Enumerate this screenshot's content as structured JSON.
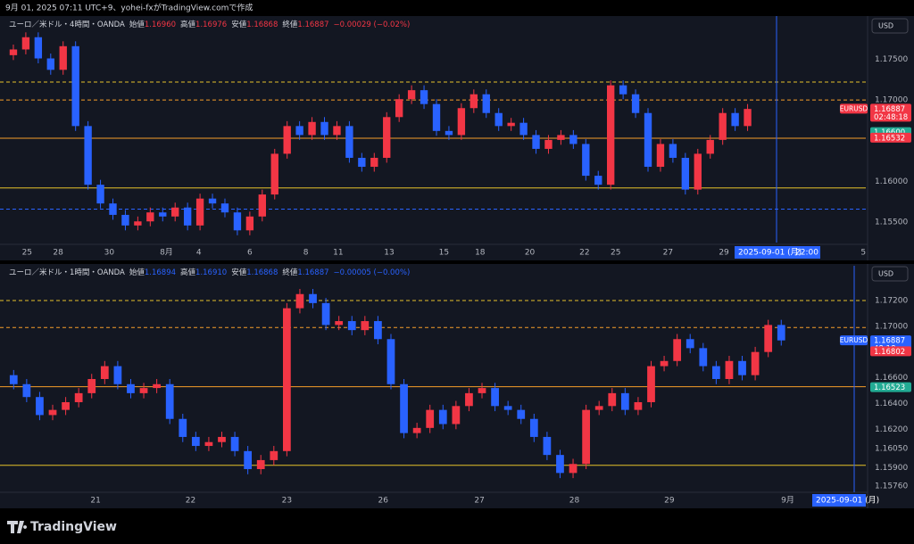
{
  "header": {
    "text": "9月 01, 2025 07:11 UTC+9、yohei-fxがTradingView.comで作成"
  },
  "footer": {
    "logo": "TradingView"
  },
  "chart_data": [
    {
      "type": "candlestick",
      "symbol": "ユーロ／米ドル・4時間・OANDA",
      "legend": [
        {
          "label": "始値",
          "value": "1.16960"
        },
        {
          "label": "高値",
          "value": "1.16976"
        },
        {
          "label": "安値",
          "value": "1.16868"
        },
        {
          "label": "終値",
          "value": "1.16887"
        }
      ],
      "change": "−0.00029 (−0.02%)",
      "legend_color": "#f23645",
      "currency": "USD",
      "up_color": "#f23645",
      "down_color": "#2962ff",
      "xlim": [
        0,
        69
      ],
      "xticks": [
        {
          "value": 1.6,
          "label": "25"
        },
        {
          "value": 4.1,
          "label": "28"
        },
        {
          "value": 8.2,
          "label": "30"
        },
        {
          "value": 12.8,
          "label": "8月"
        },
        {
          "value": 15.4,
          "label": "4"
        },
        {
          "value": 19.5,
          "label": "6"
        },
        {
          "value": 24,
          "label": "8"
        },
        {
          "value": 26.6,
          "label": "11"
        },
        {
          "value": 30.7,
          "label": "13"
        },
        {
          "value": 35.1,
          "label": "15"
        },
        {
          "value": 38,
          "label": "18"
        },
        {
          "value": 42,
          "label": "20"
        },
        {
          "value": 46.4,
          "label": "22"
        },
        {
          "value": 48.9,
          "label": "25"
        },
        {
          "value": 53.1,
          "label": "27"
        },
        {
          "value": 57.6,
          "label": "29"
        },
        {
          "value": 68.8,
          "label": "5"
        }
      ],
      "ylim": [
        1.1525,
        1.1803
      ],
      "yticks": [
        {
          "value": 1.175,
          "label": "1.17500"
        },
        {
          "value": 1.17,
          "label": "1.17000"
        },
        {
          "value": 1.16,
          "label": "1.16000"
        },
        {
          "value": 1.155,
          "label": "1.15500"
        }
      ],
      "open": [
        1.1755,
        1.1762,
        1.1777,
        1.1751,
        1.1737,
        1.1766,
        1.1668,
        1.1596,
        1.1573,
        1.1559,
        1.1546,
        1.1551,
        1.1562,
        1.1557,
        1.1568,
        1.1546,
        1.1579,
        1.1573,
        1.1562,
        1.154,
        1.1557,
        1.1584,
        1.1634,
        1.1668,
        1.1657,
        1.1673,
        1.1657,
        1.1668,
        1.1629,
        1.1618,
        1.1629,
        1.1679,
        1.1701,
        1.1712,
        1.1695,
        1.1662,
        1.1657,
        1.169,
        1.1707,
        1.1684,
        1.1668,
        1.1672,
        1.1657,
        1.164,
        1.1651,
        1.1657,
        1.1646,
        1.1607,
        1.1596,
        1.1718,
        1.1707,
        1.1684,
        1.1618,
        1.1646,
        1.1629,
        1.159,
        1.1634,
        1.1651,
        1.1684,
        1.1668
      ],
      "high": [
        1.1768,
        1.1783,
        1.1783,
        1.1757,
        1.1772,
        1.1772,
        1.1674,
        1.1602,
        1.1579,
        1.1565,
        1.1557,
        1.1568,
        1.1568,
        1.1574,
        1.1574,
        1.1585,
        1.1585,
        1.1579,
        1.1568,
        1.1563,
        1.159,
        1.164,
        1.1674,
        1.1674,
        1.1679,
        1.1679,
        1.1674,
        1.1674,
        1.1635,
        1.1635,
        1.1685,
        1.1707,
        1.1718,
        1.1718,
        1.1701,
        1.1668,
        1.1696,
        1.1713,
        1.1713,
        1.169,
        1.1678,
        1.1678,
        1.1663,
        1.1657,
        1.1663,
        1.1663,
        1.1652,
        1.1613,
        1.1724,
        1.1724,
        1.1713,
        1.169,
        1.1652,
        1.1652,
        1.1635,
        1.164,
        1.1657,
        1.169,
        1.169,
        1.1695
      ],
      "low": [
        1.1749,
        1.1756,
        1.1745,
        1.1731,
        1.1731,
        1.1662,
        1.159,
        1.1567,
        1.1553,
        1.154,
        1.154,
        1.1545,
        1.1551,
        1.1551,
        1.154,
        1.154,
        1.1567,
        1.1556,
        1.1534,
        1.1534,
        1.1551,
        1.1578,
        1.1628,
        1.1651,
        1.1651,
        1.1651,
        1.1651,
        1.1623,
        1.1612,
        1.1612,
        1.1623,
        1.1673,
        1.1695,
        1.1689,
        1.1656,
        1.1651,
        1.1651,
        1.1684,
        1.1678,
        1.1662,
        1.1662,
        1.1651,
        1.1634,
        1.1634,
        1.1645,
        1.164,
        1.1601,
        1.159,
        1.159,
        1.1701,
        1.1678,
        1.1612,
        1.1612,
        1.1623,
        1.1584,
        1.1584,
        1.1628,
        1.1645,
        1.1662,
        1.1662
      ],
      "close": [
        1.1762,
        1.1777,
        1.1751,
        1.1737,
        1.1766,
        1.1668,
        1.1596,
        1.1573,
        1.1559,
        1.1546,
        1.1551,
        1.1562,
        1.1557,
        1.1568,
        1.1546,
        1.1579,
        1.1573,
        1.1562,
        1.154,
        1.1557,
        1.1584,
        1.1634,
        1.1668,
        1.1657,
        1.1673,
        1.1657,
        1.1668,
        1.1629,
        1.1618,
        1.1629,
        1.1679,
        1.1701,
        1.1712,
        1.1695,
        1.1662,
        1.1657,
        1.169,
        1.1707,
        1.1684,
        1.1668,
        1.1672,
        1.1657,
        1.164,
        1.1651,
        1.1657,
        1.1646,
        1.1607,
        1.1596,
        1.1718,
        1.1707,
        1.1684,
        1.1618,
        1.1646,
        1.1629,
        1.159,
        1.1634,
        1.1651,
        1.1684,
        1.1668,
        1.1689
      ],
      "levels": [
        {
          "value": 1.1722,
          "color": "#e6c229",
          "dashed": true
        },
        {
          "value": 1.17,
          "color": "#f59d2a",
          "dashed": true
        },
        {
          "value": 1.1653,
          "color": "#f59d2a",
          "dashed": false
        },
        {
          "value": 1.1592,
          "color": "#e6c229",
          "dashed": false
        },
        {
          "value": 1.1566,
          "color": "#2962ff",
          "dashed": true
        }
      ],
      "price_tags": [
        {
          "name": "EURUSD",
          "value": 1.16887,
          "label": "1.16887",
          "sub": "02:48:18",
          "color": "#f23645"
        },
        {
          "value": 1.166,
          "label": "1.16600",
          "color": "#22ab94"
        },
        {
          "value": 1.16532,
          "label": "1.16532",
          "color": "#f23645"
        }
      ],
      "crosshair_date": "2025-09-01 (月)",
      "crosshair_time": "22:00"
    },
    {
      "type": "candlestick",
      "symbol": "ユーロ／米ドル・1時間・OANDA",
      "legend": [
        {
          "label": "始値",
          "value": "1.16894"
        },
        {
          "label": "高値",
          "value": "1.16910"
        },
        {
          "label": "安値",
          "value": "1.16868"
        },
        {
          "label": "終値",
          "value": "1.16887"
        }
      ],
      "change": "−0.00005 (−0.00%)",
      "legend_color": "#2962ff",
      "currency": "USD",
      "up_color": "#f23645",
      "down_color": "#2962ff",
      "xlim": [
        0,
        66
      ],
      "xticks": [
        {
          "value": 6.8,
          "label": "21"
        },
        {
          "value": 14.1,
          "label": "22"
        },
        {
          "value": 21.5,
          "label": "23"
        },
        {
          "value": 28.9,
          "label": "26"
        },
        {
          "value": 36.3,
          "label": "27"
        },
        {
          "value": 43.6,
          "label": "28"
        },
        {
          "value": 50.9,
          "label": "29"
        },
        {
          "value": 60,
          "label": "9月"
        }
      ],
      "ylim": [
        1.1571,
        1.1747
      ],
      "yticks": [
        {
          "value": 1.172,
          "label": "1.17200"
        },
        {
          "value": 1.17,
          "label": "1.17000"
        },
        {
          "value": 1.166,
          "label": "1.16600"
        },
        {
          "value": 1.164,
          "label": "1.16400"
        },
        {
          "value": 1.162,
          "label": "1.16200"
        },
        {
          "value": 1.1605,
          "label": "1.16050"
        },
        {
          "value": 1.159,
          "label": "1.15900"
        },
        {
          "value": 1.1576,
          "label": "1.15760"
        }
      ],
      "open": [
        1.1662,
        1.1655,
        1.1645,
        1.1631,
        1.1635,
        1.1641,
        1.1648,
        1.1659,
        1.1669,
        1.1655,
        1.1648,
        1.1652,
        1.1655,
        1.1628,
        1.1614,
        1.1607,
        1.161,
        1.1614,
        1.1603,
        1.1589,
        1.1596,
        1.1603,
        1.1714,
        1.1725,
        1.1718,
        1.1701,
        1.1704,
        1.1697,
        1.1704,
        1.169,
        1.1655,
        1.1617,
        1.1621,
        1.1635,
        1.1624,
        1.1638,
        1.1648,
        1.1652,
        1.1638,
        1.1635,
        1.1628,
        1.1614,
        1.16,
        1.1586,
        1.1593,
        1.1635,
        1.1638,
        1.1648,
        1.1635,
        1.1641,
        1.1669,
        1.1673,
        1.169,
        1.1683,
        1.1669,
        1.1659,
        1.1673,
        1.1662,
        1.168,
        1.1701
      ],
      "high": [
        1.1666,
        1.1659,
        1.1649,
        1.1639,
        1.1645,
        1.1652,
        1.1663,
        1.1673,
        1.1673,
        1.1659,
        1.1656,
        1.1659,
        1.1659,
        1.1632,
        1.1618,
        1.1614,
        1.1618,
        1.1618,
        1.1607,
        1.16,
        1.1607,
        1.1718,
        1.1729,
        1.1729,
        1.1722,
        1.1708,
        1.1708,
        1.1708,
        1.1708,
        1.1694,
        1.1659,
        1.1625,
        1.1639,
        1.1639,
        1.1642,
        1.1652,
        1.1656,
        1.1656,
        1.1642,
        1.1639,
        1.1632,
        1.1618,
        1.1604,
        1.1597,
        1.1639,
        1.1642,
        1.1652,
        1.1652,
        1.1645,
        1.1673,
        1.1677,
        1.1694,
        1.1694,
        1.1687,
        1.1673,
        1.1677,
        1.1677,
        1.1684,
        1.1705,
        1.1705
      ],
      "low": [
        1.1651,
        1.1641,
        1.1627,
        1.1627,
        1.1631,
        1.1637,
        1.1644,
        1.1655,
        1.1651,
        1.1644,
        1.1644,
        1.1648,
        1.1624,
        1.161,
        1.1603,
        1.1603,
        1.1606,
        1.1599,
        1.1585,
        1.1585,
        1.1592,
        1.1599,
        1.171,
        1.1714,
        1.1697,
        1.1697,
        1.1693,
        1.1693,
        1.1686,
        1.1651,
        1.1613,
        1.1613,
        1.1617,
        1.162,
        1.162,
        1.1634,
        1.1644,
        1.1634,
        1.1631,
        1.1624,
        1.161,
        1.1596,
        1.1582,
        1.1582,
        1.1589,
        1.1631,
        1.1634,
        1.1631,
        1.1631,
        1.1637,
        1.1665,
        1.1669,
        1.1679,
        1.1665,
        1.1655,
        1.1655,
        1.1658,
        1.1658,
        1.1676,
        1.1685
      ],
      "close": [
        1.1655,
        1.1645,
        1.1631,
        1.1635,
        1.1641,
        1.1648,
        1.1659,
        1.1669,
        1.1655,
        1.1648,
        1.1652,
        1.1655,
        1.1628,
        1.1614,
        1.1607,
        1.161,
        1.1614,
        1.1603,
        1.1589,
        1.1596,
        1.1603,
        1.1714,
        1.1725,
        1.1718,
        1.1701,
        1.1704,
        1.1697,
        1.1704,
        1.169,
        1.1655,
        1.1617,
        1.1621,
        1.1635,
        1.1624,
        1.1638,
        1.1648,
        1.1652,
        1.1638,
        1.1635,
        1.1628,
        1.1614,
        1.16,
        1.1586,
        1.1593,
        1.1635,
        1.1638,
        1.1648,
        1.1635,
        1.1641,
        1.1669,
        1.1673,
        1.169,
        1.1683,
        1.1669,
        1.1659,
        1.1673,
        1.1662,
        1.168,
        1.1701,
        1.1689
      ],
      "levels": [
        {
          "value": 1.172,
          "color": "#e6c229",
          "dashed": true
        },
        {
          "value": 1.1699,
          "color": "#f59d2a",
          "dashed": true
        },
        {
          "value": 1.1653,
          "color": "#f59d2a",
          "dashed": false
        },
        {
          "value": 1.1592,
          "color": "#e6c229",
          "dashed": false
        }
      ],
      "price_tags": [
        {
          "name": "EURUSD",
          "value": 1.16887,
          "label": "1.16887",
          "sub": "48:18",
          "color": "#2962ff"
        },
        {
          "value": 1.16802,
          "label": "1.16802",
          "color": "#f23645"
        },
        {
          "value": 1.16523,
          "label": "1.16523",
          "color": "#22ab94"
        }
      ],
      "crosshair_date": "2025-09-01 (月)"
    }
  ]
}
